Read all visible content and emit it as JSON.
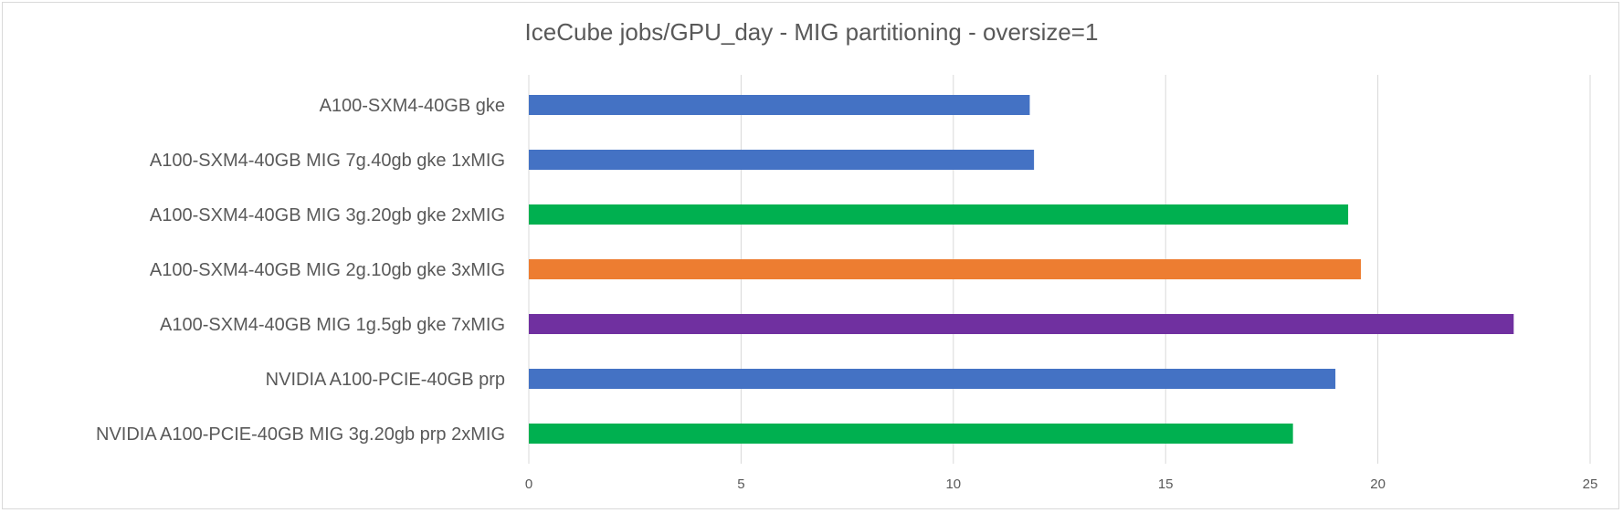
{
  "chart_data": {
    "type": "bar",
    "orientation": "horizontal",
    "title": "IceCube jobs/GPU_day - MIG partitioning - oversize=1",
    "categories": [
      "A100-SXM4-40GB gke",
      "A100-SXM4-40GB MIG 7g.40gb gke 1xMIG",
      "A100-SXM4-40GB MIG 3g.20gb gke 2xMIG",
      "A100-SXM4-40GB MIG 2g.10gb gke 3xMIG",
      "A100-SXM4-40GB MIG 1g.5gb gke 7xMIG",
      "NVIDIA A100-PCIE-40GB prp",
      "NVIDIA A100-PCIE-40GB MIG 3g.20gb prp 2xMIG"
    ],
    "values": [
      11.8,
      11.9,
      19.3,
      19.6,
      23.2,
      19.0,
      18.0
    ],
    "bar_colors": [
      "#4472c4",
      "#4472c4",
      "#00b050",
      "#ed7d31",
      "#7030a0",
      "#4472c4",
      "#00b050"
    ],
    "xlim": [
      0,
      25
    ],
    "xticks": [
      0,
      5,
      10,
      15,
      20,
      25
    ],
    "xlabel": "",
    "ylabel": "",
    "grid": true,
    "legend": "none"
  }
}
